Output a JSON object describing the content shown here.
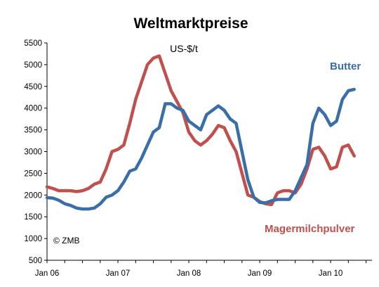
{
  "chart_data": {
    "type": "line",
    "title": "Weltmarktpreise",
    "unit": "US-$/t",
    "credit": "© ZMB",
    "ylim": [
      500,
      5500
    ],
    "yticks": [
      500,
      1000,
      1500,
      2000,
      2500,
      3000,
      3500,
      4000,
      4500,
      5000,
      5500
    ],
    "xlim": [
      0,
      55
    ],
    "xticks": [
      {
        "label": "Jan 06",
        "x": 0
      },
      {
        "label": "Jan 07",
        "x": 12
      },
      {
        "label": "Jan 08",
        "x": 24
      },
      {
        "label": "Jan 09",
        "x": 36
      },
      {
        "label": "Jan 10",
        "x": 48
      }
    ],
    "grid": false,
    "legend": "inline labels",
    "series": [
      {
        "name": "Butter",
        "color": "#3a6ea8",
        "points": [
          [
            0,
            1940
          ],
          [
            1,
            1930
          ],
          [
            2,
            1880
          ],
          [
            3,
            1800
          ],
          [
            4,
            1760
          ],
          [
            5,
            1700
          ],
          [
            6,
            1680
          ],
          [
            7,
            1680
          ],
          [
            8,
            1700
          ],
          [
            9,
            1800
          ],
          [
            10,
            1950
          ],
          [
            11,
            2000
          ],
          [
            12,
            2100
          ],
          [
            13,
            2300
          ],
          [
            14,
            2550
          ],
          [
            15,
            2600
          ],
          [
            16,
            2850
          ],
          [
            17,
            3150
          ],
          [
            18,
            3450
          ],
          [
            19,
            3550
          ],
          [
            20,
            4100
          ],
          [
            21,
            4100
          ],
          [
            22,
            4000
          ],
          [
            23,
            3950
          ],
          [
            24,
            3700
          ],
          [
            25,
            3600
          ],
          [
            26,
            3500
          ],
          [
            27,
            3850
          ],
          [
            28,
            3950
          ],
          [
            29,
            4050
          ],
          [
            30,
            3950
          ],
          [
            31,
            3750
          ],
          [
            32,
            3650
          ],
          [
            33,
            3000
          ],
          [
            34,
            2350
          ],
          [
            35,
            1950
          ],
          [
            36,
            1830
          ],
          [
            37,
            1820
          ],
          [
            38,
            1870
          ],
          [
            39,
            1900
          ],
          [
            40,
            1900
          ],
          [
            41,
            1900
          ],
          [
            42,
            2100
          ],
          [
            43,
            2400
          ],
          [
            44,
            2700
          ],
          [
            45,
            3650
          ],
          [
            46,
            4000
          ],
          [
            47,
            3850
          ],
          [
            48,
            3600
          ],
          [
            49,
            3700
          ],
          [
            50,
            4200
          ],
          [
            51,
            4400
          ],
          [
            52,
            4430
          ]
        ]
      },
      {
        "name": "Magermilchpulver",
        "color": "#c0504d",
        "points": [
          [
            0,
            2190
          ],
          [
            1,
            2150
          ],
          [
            2,
            2100
          ],
          [
            3,
            2100
          ],
          [
            4,
            2100
          ],
          [
            5,
            2080
          ],
          [
            6,
            2100
          ],
          [
            7,
            2150
          ],
          [
            8,
            2250
          ],
          [
            9,
            2300
          ],
          [
            10,
            2600
          ],
          [
            11,
            3000
          ],
          [
            12,
            3050
          ],
          [
            13,
            3150
          ],
          [
            14,
            3650
          ],
          [
            15,
            4200
          ],
          [
            16,
            4600
          ],
          [
            17,
            5000
          ],
          [
            18,
            5150
          ],
          [
            19,
            5200
          ],
          [
            20,
            4800
          ],
          [
            21,
            4400
          ],
          [
            22,
            4150
          ],
          [
            23,
            3900
          ],
          [
            24,
            3450
          ],
          [
            25,
            3250
          ],
          [
            26,
            3150
          ],
          [
            27,
            3250
          ],
          [
            28,
            3400
          ],
          [
            29,
            3600
          ],
          [
            30,
            3550
          ],
          [
            31,
            3250
          ],
          [
            32,
            3000
          ],
          [
            33,
            2500
          ],
          [
            34,
            2000
          ],
          [
            35,
            1950
          ],
          [
            36,
            1850
          ],
          [
            37,
            1800
          ],
          [
            38,
            1780
          ],
          [
            39,
            2050
          ],
          [
            40,
            2100
          ],
          [
            41,
            2100
          ],
          [
            42,
            2050
          ],
          [
            43,
            2250
          ],
          [
            44,
            2600
          ],
          [
            45,
            3050
          ],
          [
            46,
            3100
          ],
          [
            47,
            2900
          ],
          [
            48,
            2600
          ],
          [
            49,
            2650
          ],
          [
            50,
            3100
          ],
          [
            51,
            3150
          ],
          [
            52,
            2900
          ]
        ]
      }
    ]
  }
}
